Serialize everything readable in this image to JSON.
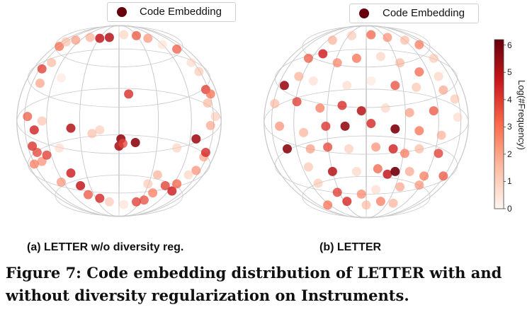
{
  "chart_data": [
    {
      "type": "scatter",
      "title": "(a) LETTER w/o diversity reg.",
      "legend": "Code Embedding",
      "legend_position": "top",
      "colorbar": {
        "label": "Log(#Frequency)",
        "range": [
          0,
          6.2
        ],
        "ticks": [
          "0",
          "1",
          "2",
          "3",
          "4",
          "5",
          "6"
        ]
      },
      "points": [
        [
          -0.45,
          0.9,
          2.4
        ],
        [
          -0.3,
          0.93,
          2.0
        ],
        [
          -0.2,
          0.92,
          4.8
        ],
        [
          -0.1,
          0.93,
          5.0
        ],
        [
          0.05,
          0.96,
          1.2
        ],
        [
          0.18,
          0.95,
          3.6
        ],
        [
          0.3,
          0.92,
          2.5
        ],
        [
          0.45,
          0.85,
          0.8
        ],
        [
          -0.62,
          0.83,
          3.2
        ],
        [
          -0.55,
          0.88,
          1.7
        ],
        [
          0.6,
          0.8,
          3.5
        ],
        [
          0.75,
          0.65,
          1.0
        ],
        [
          -0.8,
          0.58,
          4.0
        ],
        [
          0.83,
          0.55,
          1.5
        ],
        [
          -0.7,
          0.65,
          1.8
        ],
        [
          -0.6,
          0.48,
          0.6
        ],
        [
          -0.82,
          0.42,
          2.3
        ],
        [
          0.9,
          0.35,
          4.0
        ],
        [
          0.95,
          0.3,
          3.2
        ],
        [
          0.92,
          0.2,
          1.8
        ],
        [
          -0.95,
          0.05,
          3.5
        ],
        [
          -0.88,
          -0.1,
          4.5
        ],
        [
          -0.8,
          0.0,
          1.6
        ],
        [
          0.95,
          -0.05,
          2.2
        ],
        [
          1.0,
          0.05,
          1.4
        ],
        [
          0.1,
          0.3,
          4.3
        ],
        [
          0.02,
          -0.2,
          5.5
        ],
        [
          0.0,
          -0.28,
          5.2
        ],
        [
          0.04,
          -0.25,
          3.8
        ],
        [
          0.17,
          -0.24,
          5.6
        ],
        [
          -0.5,
          -0.08,
          5.0
        ],
        [
          -0.2,
          -0.1,
          1.4
        ],
        [
          -0.28,
          -0.14,
          1.7
        ],
        [
          -0.85,
          -0.35,
          3.8
        ],
        [
          -0.9,
          -0.28,
          4.2
        ],
        [
          -0.8,
          -0.45,
          2.6
        ],
        [
          -0.75,
          -0.38,
          4.0
        ],
        [
          -0.88,
          -0.48,
          3.0
        ],
        [
          0.8,
          -0.2,
          5.3
        ],
        [
          0.6,
          -0.3,
          1.3
        ],
        [
          0.88,
          -0.4,
          2.2
        ],
        [
          0.9,
          -0.35,
          4.4
        ],
        [
          -0.5,
          -0.58,
          4.6
        ],
        [
          -0.6,
          -0.68,
          2.5
        ],
        [
          -0.4,
          -0.72,
          4.8
        ],
        [
          -0.32,
          -0.82,
          3.6
        ],
        [
          -0.2,
          -0.86,
          4.4
        ],
        [
          -0.1,
          -0.9,
          1.5
        ],
        [
          0.05,
          -0.93,
          0.8
        ],
        [
          0.18,
          -0.9,
          4.0
        ],
        [
          0.26,
          -0.88,
          3.7
        ],
        [
          0.35,
          -0.8,
          3.0
        ],
        [
          0.48,
          -0.72,
          4.0
        ],
        [
          0.55,
          -0.78,
          4.6
        ],
        [
          0.6,
          -0.7,
          3.4
        ],
        [
          0.72,
          -0.6,
          1.2
        ],
        [
          0.8,
          -0.55,
          2.6
        ],
        [
          -0.62,
          -0.3,
          1.0
        ],
        [
          0.4,
          -0.6,
          2.0
        ],
        [
          0.3,
          -0.7,
          1.5
        ]
      ]
    },
    {
      "type": "scatter",
      "title": "(b) LETTER",
      "legend": "Code Embedding",
      "legend_position": "top",
      "colorbar": {
        "label": "Log(#Frequency)",
        "range": [
          0,
          6.2
        ],
        "ticks": [
          "0",
          "1",
          "2",
          "3",
          "4",
          "5",
          "6"
        ]
      },
      "points": [
        [
          -0.35,
          0.9,
          2.0
        ],
        [
          -0.15,
          0.95,
          1.5
        ],
        [
          0.05,
          0.96,
          3.4
        ],
        [
          0.22,
          0.93,
          2.6
        ],
        [
          0.4,
          0.9,
          1.8
        ],
        [
          0.55,
          0.85,
          3.0
        ],
        [
          0.7,
          0.7,
          1.5
        ],
        [
          -0.6,
          0.7,
          3.5
        ],
        [
          -0.45,
          0.75,
          4.6
        ],
        [
          -0.3,
          0.65,
          2.8
        ],
        [
          -0.1,
          0.7,
          3.2
        ],
        [
          0.15,
          0.72,
          1.3
        ],
        [
          0.35,
          0.65,
          1.9
        ],
        [
          0.55,
          0.55,
          3.3
        ],
        [
          0.75,
          0.5,
          1.2
        ],
        [
          -0.85,
          0.4,
          5.4
        ],
        [
          -0.7,
          0.5,
          2.0
        ],
        [
          -0.55,
          0.45,
          0.9
        ],
        [
          -0.2,
          0.4,
          1.0
        ],
        [
          0.05,
          0.45,
          0.6
        ],
        [
          0.3,
          0.4,
          3.7
        ],
        [
          0.52,
          0.38,
          1.6
        ],
        [
          0.8,
          0.35,
          2.2
        ],
        [
          0.92,
          0.25,
          1.5
        ],
        [
          -0.95,
          0.2,
          1.8
        ],
        [
          -0.72,
          0.22,
          4.0
        ],
        [
          -0.48,
          0.15,
          3.0
        ],
        [
          -0.25,
          0.18,
          4.3
        ],
        [
          -0.05,
          0.12,
          5.0
        ],
        [
          0.2,
          0.15,
          1.2
        ],
        [
          0.45,
          0.1,
          2.4
        ],
        [
          0.7,
          0.12,
          3.6
        ],
        [
          0.95,
          0.05,
          1.0
        ],
        [
          -0.9,
          -0.05,
          2.6
        ],
        [
          -0.65,
          -0.12,
          2.0
        ],
        [
          -0.42,
          -0.05,
          4.2
        ],
        [
          -0.22,
          -0.05,
          5.5
        ],
        [
          0.05,
          -0.02,
          4.4
        ],
        [
          0.3,
          -0.08,
          5.8
        ],
        [
          0.55,
          -0.1,
          3.2
        ],
        [
          0.78,
          -0.15,
          2.0
        ],
        [
          -0.82,
          -0.3,
          5.6
        ],
        [
          -0.58,
          -0.3,
          2.4
        ],
        [
          -0.4,
          -0.28,
          3.8
        ],
        [
          -0.18,
          -0.3,
          1.4
        ],
        [
          0.1,
          -0.28,
          2.6
        ],
        [
          0.28,
          -0.3,
          4.5
        ],
        [
          0.4,
          -0.35,
          3.0
        ],
        [
          0.55,
          -0.3,
          1.8
        ],
        [
          0.75,
          -0.35,
          4.0
        ],
        [
          -0.6,
          -0.5,
          1.6
        ],
        [
          -0.35,
          -0.55,
          5.0
        ],
        [
          -0.1,
          -0.55,
          1.2
        ],
        [
          0.12,
          -0.52,
          3.4
        ],
        [
          0.22,
          -0.58,
          4.8
        ],
        [
          0.3,
          -0.55,
          6.0
        ],
        [
          0.45,
          -0.55,
          2.2
        ],
        [
          0.6,
          -0.6,
          3.0
        ],
        [
          -0.5,
          -0.68,
          1.5
        ],
        [
          -0.3,
          -0.78,
          4.0
        ],
        [
          -0.05,
          -0.8,
          2.8
        ],
        [
          0.1,
          -0.75,
          1.0
        ],
        [
          0.35,
          -0.72,
          2.2
        ],
        [
          0.55,
          -0.7,
          2.5
        ],
        [
          0.8,
          -0.6,
          3.6
        ],
        [
          -0.4,
          -0.92,
          3.2
        ],
        [
          -0.2,
          -0.88,
          4.4
        ],
        [
          0.0,
          -0.92,
          1.8
        ],
        [
          0.15,
          -0.88,
          3.0
        ],
        [
          0.28,
          -0.9,
          2.0
        ]
      ]
    }
  ],
  "caption": {
    "line1": "Figure 7: Code embedding distribution of LETTER with and",
    "line2": "without diversity regularization on Instruments."
  }
}
